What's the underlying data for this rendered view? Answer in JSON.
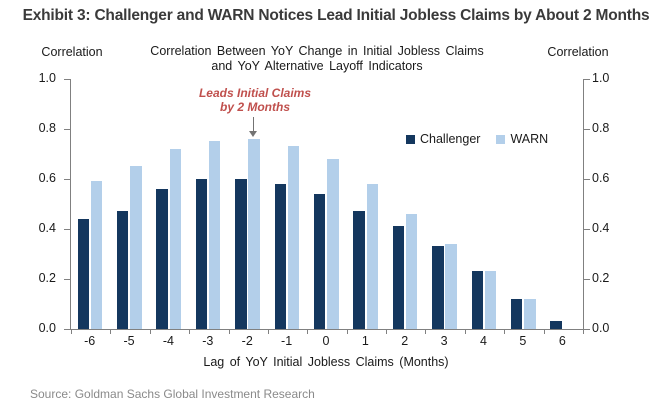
{
  "page": {
    "exhibit_title": "Exhibit 3: Challenger and WARN Notices Lead Initial Jobless Claims by About 2 Months",
    "source": "Source: Goldman Sachs Global Investment Research"
  },
  "chart_data": {
    "type": "bar",
    "title_lines": [
      "Correlation Between YoY Change in Initial Jobless Claims",
      "and YoY Alternative Layoff Indicators"
    ],
    "left_axis_label": "Correlation",
    "right_axis_label": "Correlation",
    "xlabel": "Lag of YoY Initial Jobless Claims (Months)",
    "categories": [
      "-6",
      "-5",
      "-4",
      "-3",
      "-2",
      "-1",
      "0",
      "1",
      "2",
      "3",
      "4",
      "5",
      "6"
    ],
    "series": [
      {
        "name": "Challenger",
        "color": "#14375E",
        "values": [
          0.44,
          0.47,
          0.56,
          0.6,
          0.6,
          0.58,
          0.54,
          0.47,
          0.41,
          0.33,
          0.23,
          0.12,
          0.03
        ]
      },
      {
        "name": "WARN",
        "color": "#B3CFEA",
        "values": [
          0.59,
          0.65,
          0.72,
          0.75,
          0.76,
          0.73,
          0.68,
          0.58,
          0.46,
          0.34,
          0.23,
          0.12,
          0
        ]
      }
    ],
    "ylim": [
      0.0,
      1.0
    ],
    "y_ticks": [
      "1.0",
      "0.8",
      "0.6",
      "0.4",
      "0.2",
      "0.0"
    ],
    "grid": false,
    "legend_position": "inside top-right",
    "annotation": {
      "lines": [
        "Leads Initial Claims",
        "by 2 Months"
      ],
      "color": "#C0504D",
      "arrow_color": "#737373",
      "target_category": "-2",
      "target_series": "WARN"
    }
  }
}
